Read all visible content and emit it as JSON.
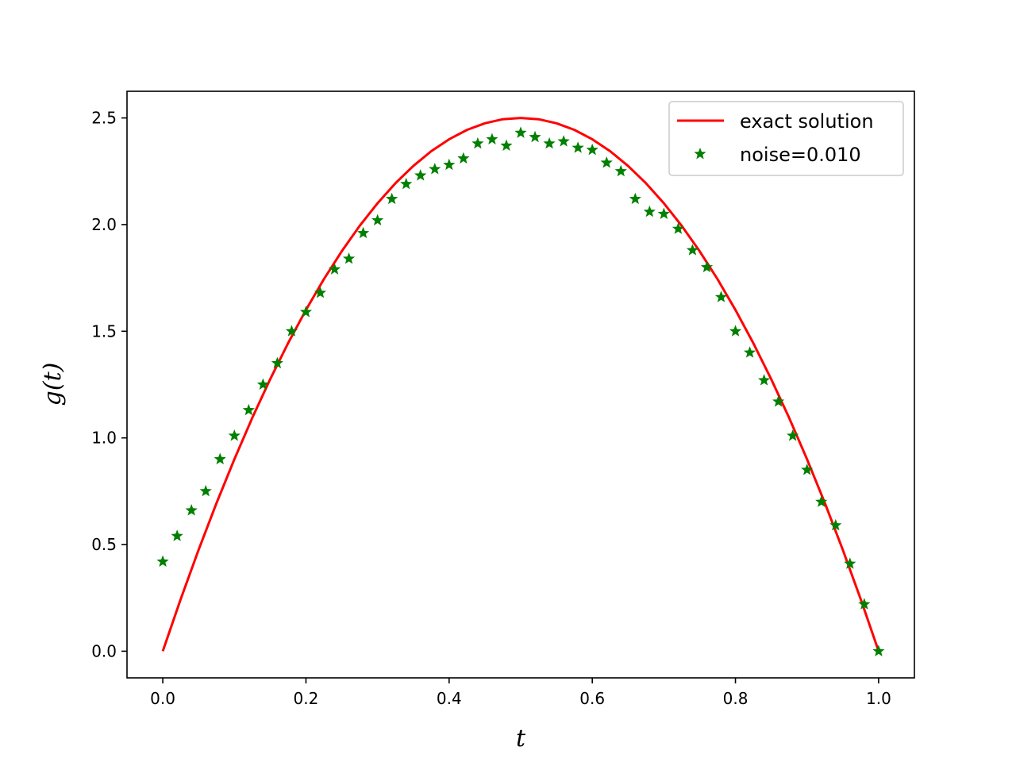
{
  "chart_data": {
    "type": "line",
    "title": "",
    "xlabel": "t",
    "ylabel": "g(t)",
    "xlim": [
      -0.05,
      1.05
    ],
    "ylim": [
      -0.125,
      2.625
    ],
    "xticks": [
      0.0,
      0.2,
      0.4,
      0.6,
      0.8,
      1.0
    ],
    "xtick_labels": [
      "0.0",
      "0.2",
      "0.4",
      "0.6",
      "0.8",
      "1.0"
    ],
    "yticks": [
      0.0,
      0.5,
      1.0,
      1.5,
      2.0,
      2.5
    ],
    "ytick_labels": [
      "0.0",
      "0.5",
      "1.0",
      "1.5",
      "2.0",
      "2.5"
    ],
    "grid": false,
    "legend_position": "upper-right",
    "series": [
      {
        "name": "exact solution",
        "style": "line",
        "color": "#ff0000",
        "x": [
          0.0,
          0.025,
          0.05,
          0.075,
          0.1,
          0.125,
          0.15,
          0.175,
          0.2,
          0.225,
          0.25,
          0.275,
          0.3,
          0.325,
          0.35,
          0.375,
          0.4,
          0.425,
          0.45,
          0.475,
          0.5,
          0.525,
          0.55,
          0.575,
          0.6,
          0.625,
          0.65,
          0.675,
          0.7,
          0.725,
          0.75,
          0.775,
          0.8,
          0.825,
          0.85,
          0.875,
          0.9,
          0.925,
          0.95,
          0.975,
          1.0
        ],
        "y": [
          0.0,
          0.244,
          0.475,
          0.694,
          0.9,
          1.094,
          1.275,
          1.444,
          1.6,
          1.744,
          1.875,
          1.994,
          2.1,
          2.194,
          2.275,
          2.344,
          2.4,
          2.444,
          2.475,
          2.494,
          2.5,
          2.494,
          2.475,
          2.444,
          2.4,
          2.344,
          2.275,
          2.194,
          2.1,
          1.994,
          1.875,
          1.744,
          1.6,
          1.444,
          1.275,
          1.094,
          0.9,
          0.694,
          0.475,
          0.244,
          0.0
        ]
      },
      {
        "name": "noise=0.010",
        "style": "marker-star",
        "color": "#008000",
        "x": [
          0.0,
          0.02,
          0.04,
          0.06,
          0.08,
          0.1,
          0.12,
          0.14,
          0.16,
          0.18,
          0.2,
          0.22,
          0.24,
          0.26,
          0.28,
          0.3,
          0.32,
          0.34,
          0.36,
          0.38,
          0.4,
          0.42,
          0.44,
          0.46,
          0.48,
          0.5,
          0.52,
          0.54,
          0.56,
          0.58,
          0.6,
          0.62,
          0.64,
          0.66,
          0.68,
          0.7,
          0.72,
          0.74,
          0.76,
          0.78,
          0.8,
          0.82,
          0.84,
          0.86,
          0.88,
          0.9,
          0.92,
          0.94,
          0.96,
          0.98,
          1.0
        ],
        "y": [
          0.42,
          0.54,
          0.66,
          0.75,
          0.9,
          1.01,
          1.13,
          1.25,
          1.35,
          1.5,
          1.59,
          1.68,
          1.79,
          1.84,
          1.96,
          2.02,
          2.12,
          2.19,
          2.23,
          2.26,
          2.28,
          2.31,
          2.38,
          2.4,
          2.37,
          2.43,
          2.41,
          2.38,
          2.39,
          2.36,
          2.35,
          2.29,
          2.25,
          2.12,
          2.06,
          2.05,
          1.98,
          1.88,
          1.8,
          1.66,
          1.5,
          1.4,
          1.27,
          1.17,
          1.01,
          0.85,
          0.7,
          0.59,
          0.41,
          0.22,
          0.0
        ]
      }
    ]
  }
}
